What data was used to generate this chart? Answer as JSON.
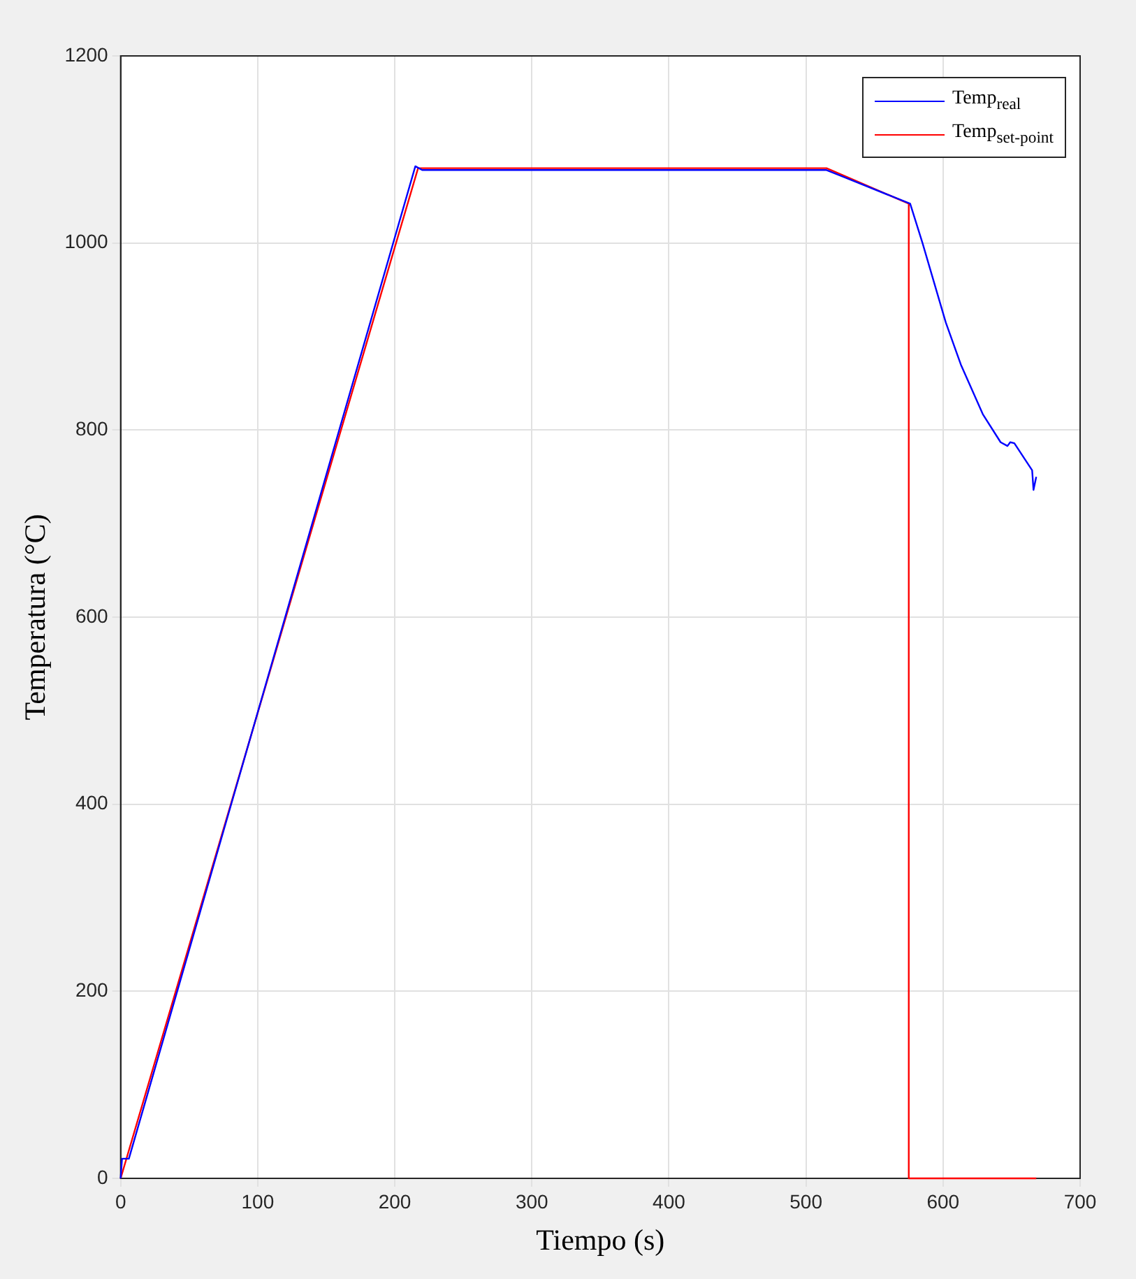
{
  "chart_data": {
    "type": "line",
    "xlabel": "Tiempo (s)",
    "ylabel": "Temperatura (°C)",
    "xlim": [
      0,
      700
    ],
    "ylim": [
      0,
      1200
    ],
    "xticks": [
      0,
      100,
      200,
      300,
      400,
      500,
      600,
      700
    ],
    "yticks": [
      0,
      200,
      400,
      600,
      800,
      1000,
      1200
    ],
    "grid": true,
    "legend": "top right",
    "marker": "none",
    "line_style": "solid",
    "series": [
      {
        "name": "Temp$_{real}$",
        "color": "#0000ff",
        "x": [
          0,
          1,
          6,
          215,
          220,
          515,
          576,
          585,
          602,
          613,
          629,
          642,
          647,
          649,
          652,
          665,
          666,
          668
        ],
        "values": [
          0,
          21,
          21,
          1082,
          1078,
          1078,
          1042,
          1000,
          915,
          870,
          817,
          787,
          783,
          787,
          786,
          757,
          736,
          750
        ]
      },
      {
        "name": "Temp$_{set-point}$",
        "color": "#ff0000",
        "x": [
          0,
          217,
          515,
          575,
          575,
          668
        ],
        "values": [
          0,
          1080,
          1080,
          1042,
          0,
          0
        ]
      }
    ]
  }
}
